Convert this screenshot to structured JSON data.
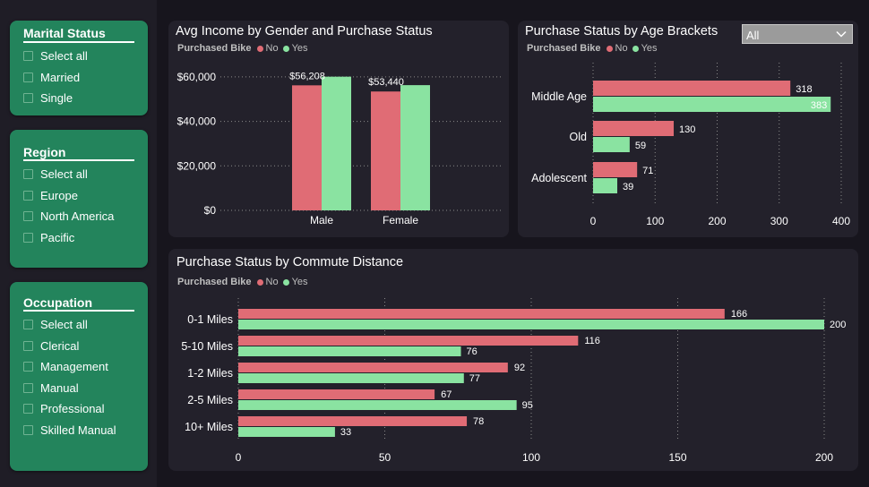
{
  "colors": {
    "no": "#e06c75",
    "yes": "#8ae3a1",
    "grid": "#8a8a8a",
    "text": "#ffffff"
  },
  "slicers": {
    "marital": {
      "title": "Marital Status",
      "items": [
        "Select all",
        "Married",
        "Single"
      ]
    },
    "region": {
      "title": "Region",
      "items": [
        "Select all",
        "Europe",
        "North America",
        "Pacific"
      ]
    },
    "occupation": {
      "title": "Occupation",
      "items": [
        "Select all",
        "Clerical",
        "Management",
        "Manual",
        "Professional",
        "Skilled Manual"
      ]
    }
  },
  "legend": {
    "title": "Purchased Bike",
    "no": "No",
    "yes": "Yes"
  },
  "age_filter": {
    "value": "All"
  },
  "chart_data": [
    {
      "type": "bar",
      "title": "Avg Income by Gender and Purchase Status",
      "categories": [
        "Male",
        "Female"
      ],
      "series": [
        {
          "name": "No",
          "values": [
            56208,
            53440
          ]
        },
        {
          "name": "Yes",
          "values": [
            60100,
            56300
          ]
        }
      ],
      "data_labels": [
        "$56,208",
        "$53,440"
      ],
      "y_ticks": [
        "$0",
        "$20,000",
        "$40,000",
        "$60,000"
      ],
      "ylim": [
        0,
        66000
      ]
    },
    {
      "type": "bar",
      "orientation": "horizontal",
      "title": "Purchase Status by Age Brackets",
      "categories": [
        "Middle Age",
        "Old",
        "Adolescent"
      ],
      "series": [
        {
          "name": "No",
          "values": [
            318,
            130,
            71
          ]
        },
        {
          "name": "Yes",
          "values": [
            383,
            59,
            39
          ]
        }
      ],
      "x_ticks": [
        "0",
        "100",
        "200",
        "300",
        "400"
      ],
      "xlim": [
        0,
        400
      ]
    },
    {
      "type": "bar",
      "orientation": "horizontal",
      "title": "Purchase Status by Commute Distance",
      "categories": [
        "0-1 Miles",
        "5-10 Miles",
        "1-2 Miles",
        "2-5 Miles",
        "10+ Miles"
      ],
      "series": [
        {
          "name": "No",
          "values": [
            166,
            116,
            92,
            67,
            78
          ]
        },
        {
          "name": "Yes",
          "values": [
            200,
            76,
            77,
            95,
            33
          ]
        }
      ],
      "x_ticks": [
        "0",
        "50",
        "100",
        "150",
        "200"
      ],
      "xlim": [
        0,
        200
      ]
    }
  ]
}
